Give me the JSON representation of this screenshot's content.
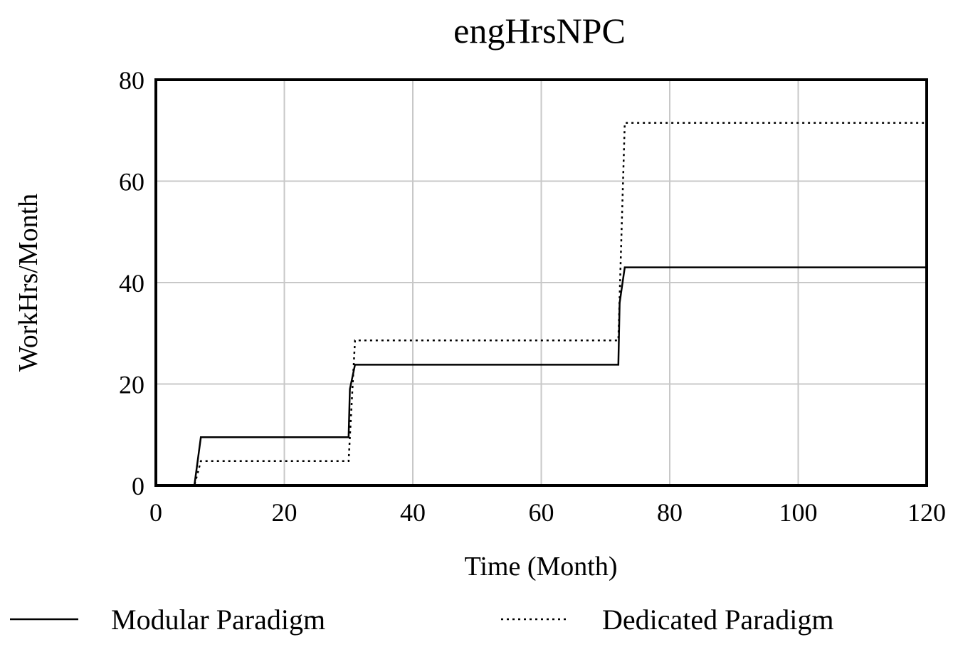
{
  "chart_data": {
    "type": "line",
    "title": "engHrsNPC",
    "xlabel": "Time (Month)",
    "ylabel": "WorkHrs/Month",
    "xlim": [
      0,
      120
    ],
    "ylim": [
      0,
      80
    ],
    "x_ticks": [
      "0",
      "20",
      "40",
      "60",
      "80",
      "100",
      "120"
    ],
    "y_ticks": [
      "0",
      "20",
      "40",
      "60",
      "80"
    ],
    "grid": true,
    "legend_position": "bottom",
    "series": [
      {
        "name": "Modular Paradigm",
        "style": "solid",
        "color": "#000000",
        "x": [
          0,
          6,
          7,
          30,
          30.2,
          31,
          72,
          72.2,
          73,
          120
        ],
        "y": [
          0,
          0,
          9.5,
          9.5,
          19,
          23.8,
          23.8,
          36,
          43,
          43
        ]
      },
      {
        "name": "Dedicated Paradigm",
        "style": "dotted",
        "color": "#000000",
        "x": [
          0,
          6,
          7,
          30,
          31,
          72,
          73,
          120
        ],
        "y": [
          0,
          0,
          4.8,
          4.8,
          28.6,
          28.6,
          71.5,
          71.5
        ]
      }
    ]
  }
}
